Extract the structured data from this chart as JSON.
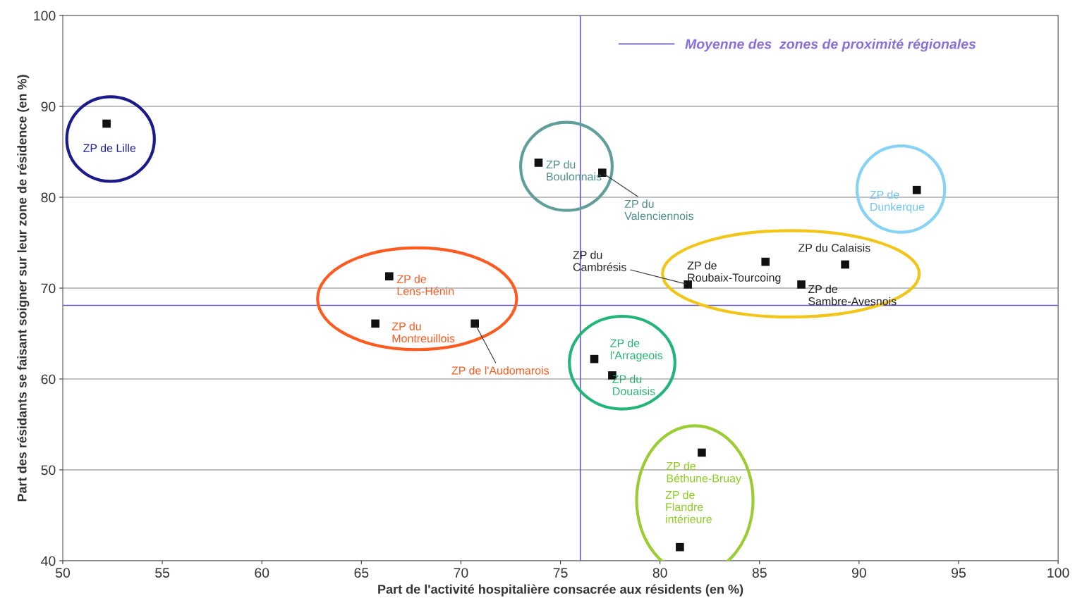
{
  "chart_data": {
    "type": "scatter",
    "xlabel": "Part de l'activité hospitalière consacrée aux résidents (en %)",
    "ylabel": "Part des résidants se faisant soigner sur leur zone de résidence (en %)",
    "x": [
      52.2,
      73.9,
      77.1,
      92.9,
      85.3,
      89.3,
      81.4,
      87.1,
      66.4,
      65.7,
      70.7,
      76.7,
      77.6,
      82.1,
      81.0
    ],
    "series": [
      {
        "color": "#111111",
        "values": [
          88.1,
          83.8,
          82.7,
          80.8,
          72.9,
          72.6,
          70.4,
          70.4,
          71.3,
          66.1,
          66.1,
          62.2,
          60.4,
          51.9,
          41.5
        ]
      }
    ],
    "marker": "square",
    "annotations": [
      {
        "text": "ZP de Lille",
        "x": 52.2,
        "y": 88.1
      },
      {
        "text": "ZP du\nBoulonnais",
        "x": 73.9,
        "y": 83.8
      },
      {
        "text": "ZP du\nValenciennois",
        "x": 77.1,
        "y": 82.7
      },
      {
        "text": "ZP de\nDunkerque",
        "x": 92.9,
        "y": 80.8
      },
      {
        "text": "ZP de\nRoubaix-Tourcoing",
        "x": 85.3,
        "y": 72.9
      },
      {
        "text": "ZP du Calaisis",
        "x": 89.3,
        "y": 72.6
      },
      {
        "text": "ZP du\nCambrésis",
        "x": 81.4,
        "y": 70.4
      },
      {
        "text": "ZP de\nSambre-Avesnois",
        "x": 87.1,
        "y": 70.4
      },
      {
        "text": "ZP de\nLens-Hénin",
        "x": 66.4,
        "y": 71.3
      },
      {
        "text": "ZP du\nMontreuillois",
        "x": 65.7,
        "y": 66.1
      },
      {
        "text": "ZP de l'Audomarois",
        "x": 70.7,
        "y": 66.1
      },
      {
        "text": "ZP de\nl'Arrageois",
        "x": 76.7,
        "y": 62.2
      },
      {
        "text": "ZP du\nDouaisis",
        "x": 77.6,
        "y": 60.4
      },
      {
        "text": "ZP de\nBéthune-Bruay",
        "x": 82.1,
        "y": 51.9
      },
      {
        "text": "ZP de\nFlandre\nintérieure",
        "x": 81.0,
        "y": 41.5
      }
    ],
    "ref_lines": [
      {
        "axis": "x",
        "value": 76.0,
        "label": "Moyenne des  zones de proximité régionales",
        "color": "#6a5acd"
      },
      {
        "axis": "y",
        "value": 68.1,
        "color": "#6a5acd"
      }
    ],
    "xlim": [
      50,
      100
    ],
    "ylim": [
      40,
      100
    ],
    "xticks": [
      50,
      55,
      60,
      65,
      70,
      75,
      80,
      85,
      90,
      95,
      100
    ],
    "yticks": [
      40,
      50,
      60,
      70,
      80,
      90,
      100
    ],
    "grid": "y",
    "legend": "top right"
  }
}
